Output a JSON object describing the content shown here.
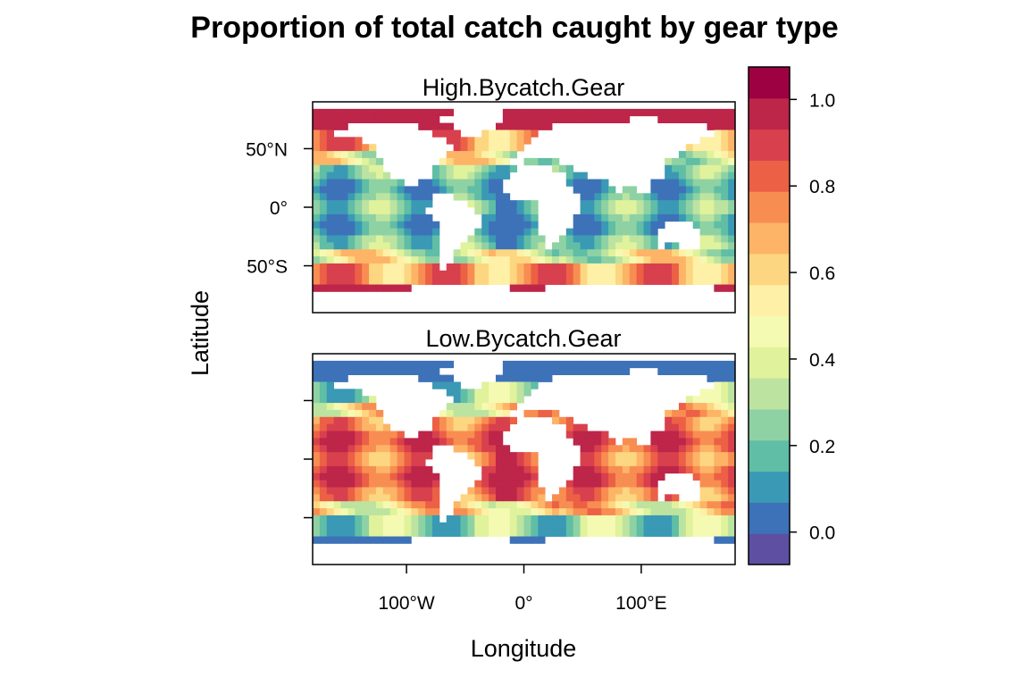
{
  "figure": {
    "title": "Proportion of total catch caught by gear type",
    "xlabel": "Longitude",
    "ylabel": "Latitude"
  },
  "panels": [
    {
      "name": "High.Bycatch.Gear",
      "description_colors": "mostly low values (blue/teal) in open ocean, high values (red) along Antarctic/Arctic margins"
    },
    {
      "name": "Low.Bycatch.Gear",
      "description_colors": "mostly high values (red/orange) in open ocean, low values (blue) along polar margins"
    }
  ],
  "axes": {
    "x_ticks": [
      {
        "value": -100,
        "label": "100°W"
      },
      {
        "value": 0,
        "label": "0°"
      },
      {
        "value": 100,
        "label": "100°E"
      }
    ],
    "y_ticks": [
      {
        "value": 50,
        "label": "50°N"
      },
      {
        "value": 0,
        "label": "0°"
      },
      {
        "value": -50,
        "label": "50°S"
      }
    ],
    "x_range": [
      -180,
      180
    ],
    "y_range": [
      -90,
      90
    ]
  },
  "colorkey": {
    "ticks": [
      {
        "value": 0.0,
        "label": "0.0"
      },
      {
        "value": 0.2,
        "label": "0.2"
      },
      {
        "value": 0.4,
        "label": "0.4"
      },
      {
        "value": 0.6,
        "label": "0.6"
      },
      {
        "value": 0.8,
        "label": "0.8"
      },
      {
        "value": 1.0,
        "label": "1.0"
      }
    ],
    "range": [
      -0.075,
      1.075
    ],
    "colors": [
      "#5E4FA2",
      "#3D72B8",
      "#3A99B5",
      "#5FBEA5",
      "#8ED2A4",
      "#BCE4A0",
      "#E0F29B",
      "#F5FAB2",
      "#FEF0A6",
      "#FDD681",
      "#FDB467",
      "#F88D52",
      "#EC6045",
      "#D8404E",
      "#BD2549",
      "#9E0142"
    ]
  }
}
